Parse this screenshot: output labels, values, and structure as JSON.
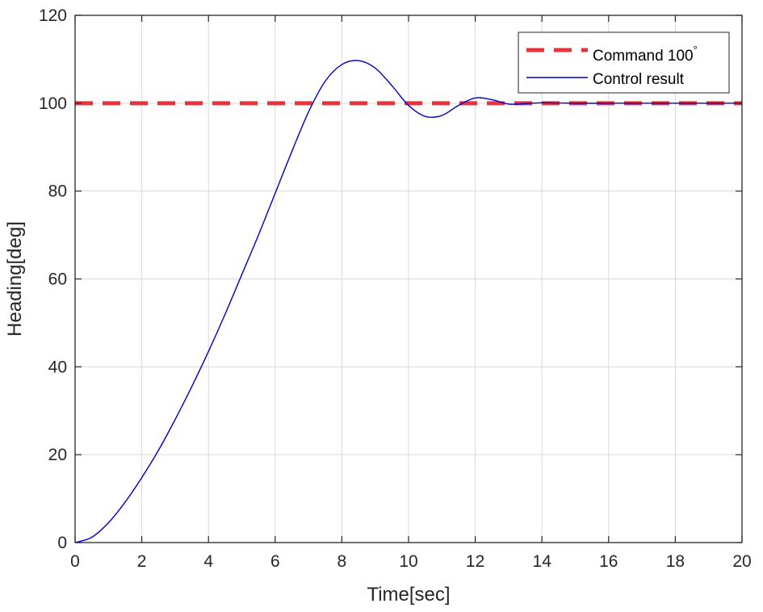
{
  "chart_data": {
    "type": "line",
    "title": "",
    "xlabel": "Time[sec]",
    "ylabel": "Heading[deg]",
    "xlim": [
      0,
      20
    ],
    "ylim": [
      0,
      120
    ],
    "xticks": [
      0,
      2,
      4,
      6,
      8,
      10,
      12,
      14,
      16,
      18,
      20
    ],
    "yticks": [
      0,
      20,
      40,
      60,
      80,
      100,
      120
    ],
    "grid": true,
    "legend_position": "top-right",
    "series": [
      {
        "name": "Command 100",
        "legend_superscript": "°",
        "style": "dashed",
        "color": "#e8333a",
        "x": [
          0,
          20
        ],
        "y": [
          100,
          100
        ]
      },
      {
        "name": "Control result",
        "style": "solid",
        "color": "#0000cc",
        "x": [
          0,
          0.5,
          1,
          1.5,
          2,
          2.5,
          3,
          3.5,
          4,
          4.5,
          5,
          5.5,
          6,
          6.5,
          7,
          7.5,
          8,
          8.5,
          9,
          9.5,
          10,
          10.5,
          11,
          11.5,
          12,
          12.5,
          13,
          13.5,
          14,
          15,
          16,
          17,
          18,
          19,
          20
        ],
        "y": [
          0,
          1.2,
          4.5,
          9.2,
          14.8,
          21,
          28,
          35.5,
          43.5,
          52,
          61,
          70,
          79.5,
          89,
          98,
          105,
          108.8,
          109.7,
          108,
          104,
          99.5,
          97,
          97.2,
          99.5,
          101.2,
          100.8,
          99.8,
          99.9,
          100.1,
          100,
          100,
          100,
          100,
          100,
          100
        ]
      }
    ]
  }
}
